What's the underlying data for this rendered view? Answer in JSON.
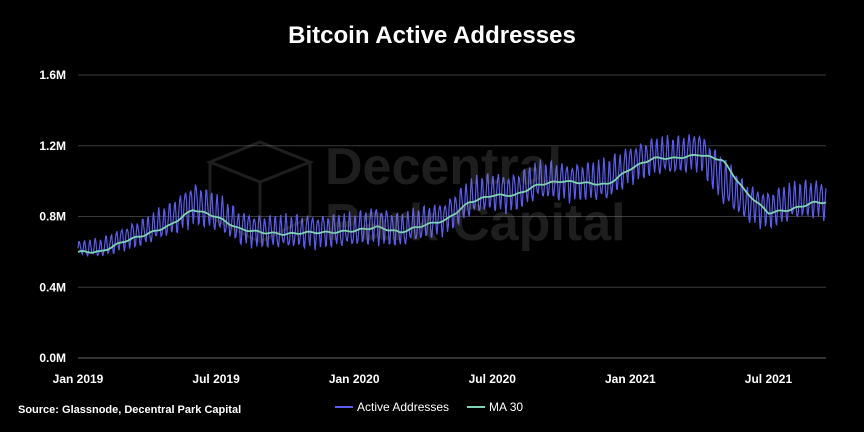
{
  "chart_data": {
    "type": "line",
    "title": "Bitcoin Active Addresses",
    "xlabel": "",
    "ylabel": "",
    "x_ticks": [
      "Jan 2019",
      "Jul 2019",
      "Jan 2020",
      "Jul 2020",
      "Jan 2021",
      "Jul 2021"
    ],
    "y_ticks": [
      "0.0M",
      "0.4M",
      "0.8M",
      "1.2M",
      "1.6M"
    ],
    "ylim": [
      0,
      1.6
    ],
    "grid": true,
    "legend": "bottom-center",
    "months": [
      "2019-01",
      "2019-02",
      "2019-03",
      "2019-04",
      "2019-05",
      "2019-06",
      "2019-07",
      "2019-08",
      "2019-09",
      "2019-10",
      "2019-11",
      "2019-12",
      "2020-01",
      "2020-02",
      "2020-03",
      "2020-04",
      "2020-05",
      "2020-06",
      "2020-07",
      "2020-08",
      "2020-09",
      "2020-10",
      "2020-11",
      "2020-12",
      "2021-01",
      "2021-02",
      "2021-03",
      "2021-04",
      "2021-05",
      "2021-06",
      "2021-07",
      "2021-08",
      "2021-09"
    ],
    "series": [
      {
        "name": "Active Addresses",
        "color": "#5a5cf0",
        "y_month_mid": [
          0.62,
          0.62,
          0.68,
          0.72,
          0.78,
          0.88,
          0.82,
          0.74,
          0.72,
          0.71,
          0.72,
          0.72,
          0.72,
          0.76,
          0.72,
          0.76,
          0.8,
          0.9,
          0.94,
          0.94,
          1.0,
          1.0,
          1.0,
          1.0,
          1.1,
          1.14,
          1.14,
          1.18,
          1.0,
          0.88,
          0.84,
          0.88,
          0.9
        ],
        "y_month_amp": [
          0.06,
          0.08,
          0.1,
          0.12,
          0.14,
          0.18,
          0.16,
          0.14,
          0.14,
          0.14,
          0.14,
          0.14,
          0.14,
          0.16,
          0.14,
          0.14,
          0.14,
          0.16,
          0.16,
          0.16,
          0.16,
          0.16,
          0.16,
          0.18,
          0.16,
          0.16,
          0.16,
          0.16,
          0.2,
          0.16,
          0.16,
          0.16,
          0.16
        ]
      },
      {
        "name": "MA 30",
        "color": "#7fd3b5",
        "y_month_avg": [
          0.6,
          0.6,
          0.66,
          0.7,
          0.75,
          0.84,
          0.8,
          0.73,
          0.71,
          0.7,
          0.71,
          0.71,
          0.72,
          0.74,
          0.71,
          0.75,
          0.78,
          0.88,
          0.92,
          0.92,
          0.98,
          1.0,
          0.99,
          0.98,
          1.07,
          1.13,
          1.13,
          1.15,
          1.12,
          0.94,
          0.82,
          0.84,
          0.88
        ]
      }
    ]
  },
  "watermark_text": [
    "Decentral",
    "Park Capital"
  ],
  "source": "Source: Glassnode, Decentral Park Capital"
}
